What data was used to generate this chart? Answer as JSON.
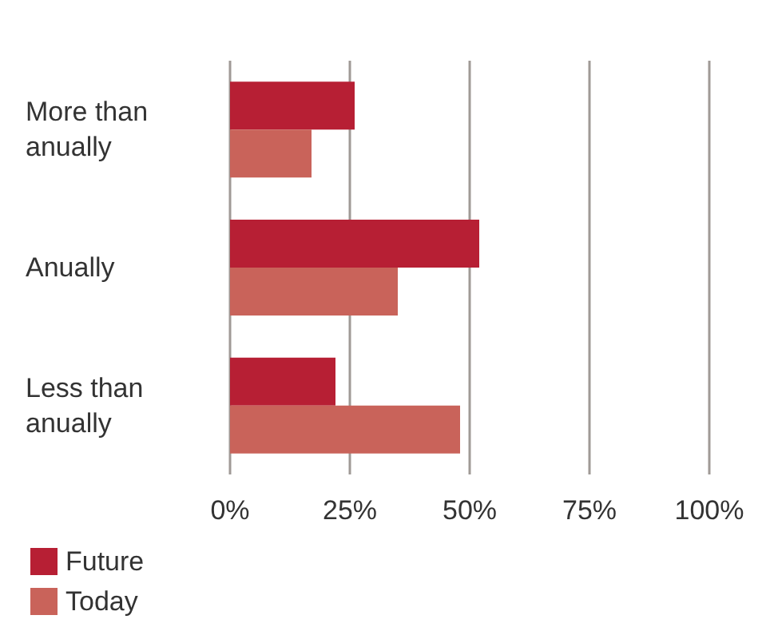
{
  "chart_data": {
    "type": "bar",
    "orientation": "horizontal",
    "categories": [
      "More than anually",
      "Anually",
      "Less than anually"
    ],
    "series": [
      {
        "name": "Future",
        "color": "#b71f34",
        "values": [
          26,
          52,
          22
        ]
      },
      {
        "name": "Today",
        "color": "#c9635a",
        "values": [
          17,
          35,
          48
        ]
      }
    ],
    "xlim": [
      0,
      100
    ],
    "xticks": [
      {
        "value": 0,
        "label": "0%"
      },
      {
        "value": 25,
        "label": "25%"
      },
      {
        "value": 50,
        "label": "50%"
      },
      {
        "value": 75,
        "label": "75%"
      },
      {
        "value": 100,
        "label": "100%"
      }
    ],
    "grid": "x",
    "legend": "bottom left"
  }
}
